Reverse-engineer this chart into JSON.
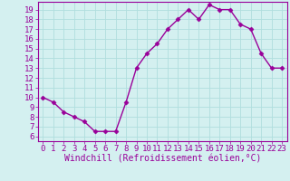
{
  "x": [
    0,
    1,
    2,
    3,
    4,
    5,
    6,
    7,
    8,
    9,
    10,
    11,
    12,
    13,
    14,
    15,
    16,
    17,
    18,
    19,
    20,
    21,
    22,
    23
  ],
  "y": [
    10,
    9.5,
    8.5,
    8,
    7.5,
    6.5,
    6.5,
    6.5,
    9.5,
    13,
    14.5,
    15.5,
    17,
    18,
    19,
    18,
    19.5,
    19,
    19,
    17.5,
    17,
    14.5,
    13,
    13
  ],
  "line_color": "#990099",
  "marker": "D",
  "marker_size": 2.5,
  "bg_color": "#d4f0f0",
  "grid_color": "#b0dede",
  "xlabel": "Windchill (Refroidissement éolien,°C)",
  "xlabel_color": "#990099",
  "tick_color": "#990099",
  "spine_color": "#990099",
  "ylim": [
    5.5,
    19.8
  ],
  "xlim": [
    -0.5,
    23.5
  ],
  "yticks": [
    6,
    7,
    8,
    9,
    10,
    11,
    12,
    13,
    14,
    15,
    16,
    17,
    18,
    19
  ],
  "xticks": [
    0,
    1,
    2,
    3,
    4,
    5,
    6,
    7,
    8,
    9,
    10,
    11,
    12,
    13,
    14,
    15,
    16,
    17,
    18,
    19,
    20,
    21,
    22,
    23
  ],
  "line_width": 1.0,
  "tick_labelsize": 6.5,
  "xlabel_fontsize": 7.0
}
